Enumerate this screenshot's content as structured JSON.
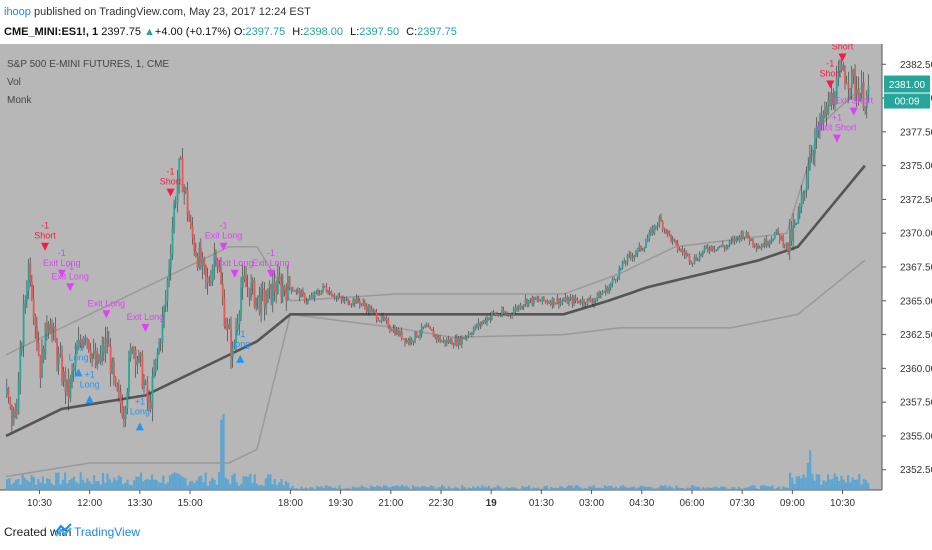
{
  "header": {
    "user": "ihoop",
    "published": " published on TradingView.com, May 23, 2017 12:24 EST",
    "symbol": "CME_MINI:ES1!, 1",
    "last": "2397.75",
    "up_arrow": "▲",
    "change": "+4.00 (+0.17%)",
    "open_label": "O:",
    "open": "2397.75",
    "high_label": "H:",
    "high": "2398.00",
    "low_label": "L:",
    "low": "2397.50",
    "close_label": "C:",
    "close": "2397.75"
  },
  "legend": {
    "title": "S&P 500 E-MINI FUTURES, 1, CME",
    "vol": "Vol",
    "monk": "Monk"
  },
  "footer": {
    "created_with": "Created with",
    "brand": "TradingView"
  },
  "colors": {
    "plot_bg": "#b7b7b7",
    "scale_bg": "#ffffff",
    "up": "#26a69a",
    "down": "#ef5350",
    "vwap": "#555555",
    "band": "#999999",
    "short": "#ff1744",
    "long": "#2196f3",
    "exit": "#e040fb",
    "price_tag": "#26a69a",
    "volume": "#4fa3d6"
  },
  "chart_data": {
    "type": "candlestick",
    "title": "S&P 500 E-MINI FUTURES, 1, CME",
    "ylim": [
      2351,
      2384
    ],
    "y_ticks": [
      "2382.50",
      "2380.00",
      "2377.50",
      "2375.00",
      "2372.50",
      "2370.00",
      "2367.50",
      "2365.00",
      "2362.50",
      "2360.00",
      "2357.50",
      "2355.00",
      "2352.50"
    ],
    "x_ticks": [
      "10:30",
      "12:00",
      "13:30",
      "15:00",
      "18:00",
      "19:30",
      "21:00",
      "22:30",
      "19",
      "01:30",
      "03:00",
      "04:30",
      "06:00",
      "07:30",
      "09:00",
      "10:30"
    ],
    "x_tick_times": [
      60,
      150,
      240,
      330,
      510,
      600,
      690,
      780,
      870,
      960,
      1050,
      1140,
      1230,
      1320,
      1410,
      1500
    ],
    "x_range_minutes": [
      0,
      1560
    ],
    "price_path": [
      [
        0,
        2358
      ],
      [
        10,
        2356
      ],
      [
        20,
        2358
      ],
      [
        30,
        2364
      ],
      [
        40,
        2368
      ],
      [
        50,
        2364
      ],
      [
        60,
        2360
      ],
      [
        75,
        2364
      ],
      [
        90,
        2361
      ],
      [
        110,
        2358
      ],
      [
        125,
        2361
      ],
      [
        140,
        2363
      ],
      [
        160,
        2360
      ],
      [
        180,
        2362
      ],
      [
        195,
        2358
      ],
      [
        210,
        2357
      ],
      [
        225,
        2362
      ],
      [
        240,
        2360
      ],
      [
        255,
        2357
      ],
      [
        270,
        2361
      ],
      [
        285,
        2365
      ],
      [
        300,
        2372
      ],
      [
        310,
        2375
      ],
      [
        320,
        2373
      ],
      [
        330,
        2370
      ],
      [
        345,
        2368
      ],
      [
        360,
        2366
      ],
      [
        375,
        2369
      ],
      [
        390,
        2364
      ],
      [
        405,
        2361
      ],
      [
        420,
        2366
      ],
      [
        435,
        2366
      ],
      [
        450,
        2365
      ],
      [
        465,
        2365
      ],
      [
        480,
        2366
      ],
      [
        495,
        2366
      ],
      [
        510,
        2366
      ],
      [
        540,
        2365
      ],
      [
        570,
        2366
      ],
      [
        600,
        2365
      ],
      [
        630,
        2365
      ],
      [
        660,
        2364
      ],
      [
        690,
        2363
      ],
      [
        720,
        2362
      ],
      [
        750,
        2363
      ],
      [
        780,
        2362
      ],
      [
        810,
        2362
      ],
      [
        840,
        2363
      ],
      [
        870,
        2364
      ],
      [
        900,
        2364
      ],
      [
        930,
        2365
      ],
      [
        960,
        2365
      ],
      [
        990,
        2365
      ],
      [
        1020,
        2365
      ],
      [
        1050,
        2365
      ],
      [
        1080,
        2366
      ],
      [
        1110,
        2368
      ],
      [
        1140,
        2369
      ],
      [
        1170,
        2371
      ],
      [
        1200,
        2369
      ],
      [
        1230,
        2368
      ],
      [
        1260,
        2369
      ],
      [
        1290,
        2369
      ],
      [
        1320,
        2370
      ],
      [
        1350,
        2369
      ],
      [
        1380,
        2370
      ],
      [
        1400,
        2369
      ],
      [
        1420,
        2371
      ],
      [
        1440,
        2376
      ],
      [
        1460,
        2378
      ],
      [
        1480,
        2380
      ],
      [
        1500,
        2382
      ],
      [
        1520,
        2381
      ],
      [
        1540,
        2380
      ]
    ],
    "vwap": [
      [
        0,
        2355
      ],
      [
        100,
        2357
      ],
      [
        250,
        2358
      ],
      [
        350,
        2360
      ],
      [
        450,
        2362
      ],
      [
        510,
        2364
      ],
      [
        700,
        2364
      ],
      [
        850,
        2364
      ],
      [
        1000,
        2364
      ],
      [
        1080,
        2365
      ],
      [
        1150,
        2366
      ],
      [
        1250,
        2367
      ],
      [
        1350,
        2368
      ],
      [
        1420,
        2369
      ],
      [
        1480,
        2372
      ],
      [
        1540,
        2375
      ]
    ],
    "upper_band": [
      [
        0,
        2361
      ],
      [
        150,
        2364
      ],
      [
        300,
        2367
      ],
      [
        400,
        2369
      ],
      [
        450,
        2369
      ],
      [
        510,
        2365
      ],
      [
        700,
        2365.5
      ],
      [
        1000,
        2365.5
      ],
      [
        1100,
        2367
      ],
      [
        1200,
        2369
      ],
      [
        1400,
        2370
      ],
      [
        1460,
        2378
      ],
      [
        1540,
        2381
      ]
    ],
    "lower_band": [
      [
        0,
        2352
      ],
      [
        150,
        2353
      ],
      [
        300,
        2353
      ],
      [
        400,
        2353
      ],
      [
        450,
        2354
      ],
      [
        510,
        2364
      ],
      [
        700,
        2363
      ],
      [
        800,
        2362.3
      ],
      [
        1000,
        2362.5
      ],
      [
        1100,
        2363
      ],
      [
        1300,
        2363
      ],
      [
        1420,
        2364
      ],
      [
        1480,
        2366
      ],
      [
        1540,
        2368
      ]
    ],
    "last_price": "2381.00",
    "countdown": "00:09",
    "signals": [
      {
        "t": 70,
        "p": 2369,
        "kind": "short",
        "label": "Short",
        "n": "-1"
      },
      {
        "t": 100,
        "p": 2367,
        "kind": "exit",
        "label": "Exit Long",
        "n": "-1"
      },
      {
        "t": 115,
        "p": 2366,
        "kind": "exit",
        "label": "Exit Long",
        "n": "-1"
      },
      {
        "t": 180,
        "p": 2364,
        "kind": "exit",
        "label": "Exit Long",
        "n": ""
      },
      {
        "t": 250,
        "p": 2363,
        "kind": "exit",
        "label": "Exit Long",
        "n": ""
      },
      {
        "t": 130,
        "p": 2360,
        "kind": "long",
        "label": "Long",
        "n": "+1"
      },
      {
        "t": 150,
        "p": 2358,
        "kind": "long",
        "label": "Long",
        "n": "+1"
      },
      {
        "t": 240,
        "p": 2356,
        "kind": "long",
        "label": "Long",
        "n": "+1"
      },
      {
        "t": 295,
        "p": 2373,
        "kind": "short",
        "label": "Short",
        "n": "-1"
      },
      {
        "t": 390,
        "p": 2369,
        "kind": "exit",
        "label": "Exit Long",
        "n": "-1"
      },
      {
        "t": 410,
        "p": 2367,
        "kind": "exit",
        "label": "Exit Long",
        "n": ""
      },
      {
        "t": 475,
        "p": 2367,
        "kind": "exit",
        "label": "Exit Long",
        "n": "-1"
      },
      {
        "t": 420,
        "p": 2361,
        "kind": "long",
        "label": "Long",
        "n": "+1"
      },
      {
        "t": 1500,
        "p": 2383,
        "kind": "short",
        "label": "Short",
        "n": "-1"
      },
      {
        "t": 1478,
        "p": 2381,
        "kind": "short",
        "label": "Short",
        "n": "-1"
      },
      {
        "t": 1520,
        "p": 2379,
        "kind": "exit",
        "label": "Exit Short",
        "n": ""
      },
      {
        "t": 1490,
        "p": 2377,
        "kind": "exit",
        "label": "Exit Short",
        "n": "+1"
      }
    ]
  }
}
